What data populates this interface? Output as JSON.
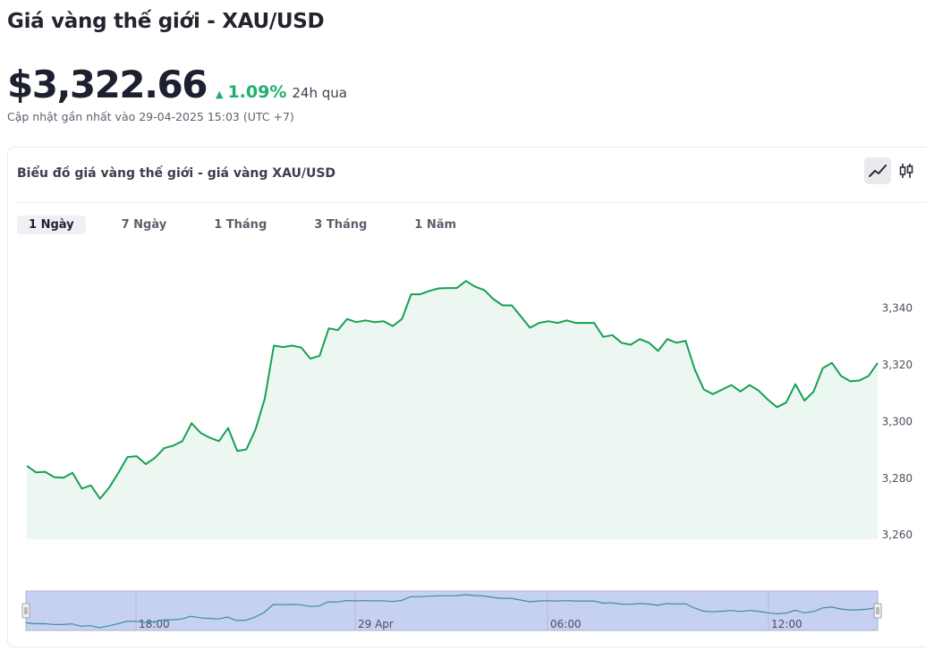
{
  "header": {
    "title": "Giá vàng thế giới - XAU/USD",
    "price": "$3,322.66",
    "change_pct": "1.09%",
    "change_period": "24h qua",
    "updated": "Cập nhật gần nhất vào 29-04-2025 15:03 (UTC +7)"
  },
  "card": {
    "title": "Biểu đồ giá vàng thế giới - giá vàng XAU/USD",
    "view_modes": [
      {
        "icon": "line-chart-icon",
        "active": true
      },
      {
        "icon": "candlestick-chart-icon",
        "active": false
      }
    ],
    "ranges": [
      {
        "label": "1 Ngày",
        "active": true
      },
      {
        "label": "7 Ngày",
        "active": false
      },
      {
        "label": "1 Tháng",
        "active": false
      },
      {
        "label": "3 Tháng",
        "active": false
      },
      {
        "label": "1 Năm",
        "active": false
      }
    ]
  },
  "colors": {
    "up": "#1db16b",
    "line": "#16a052",
    "area": "#edf7f1",
    "navigator_fill": "#c6d0f3",
    "navigator_line": "#3d8f97"
  },
  "chart_data": {
    "type": "area",
    "y_ticks": [
      "3,260",
      "3,280",
      "3,300",
      "3,320",
      "3,340"
    ],
    "ylim": [
      3258.5,
      3352
    ],
    "grid": false,
    "navigator_labels": [
      "18:00",
      "29 Apr",
      "06:00",
      "12:00"
    ],
    "series": [
      {
        "values": [
          3284.4,
          3282.1,
          3282.3,
          3280.4,
          3280.2,
          3281.9,
          3276.4,
          3277.5,
          3272.8,
          3276.7,
          3281.9,
          3287.5,
          3287.8,
          3285.0,
          3287.2,
          3290.6,
          3291.5,
          3293.1,
          3299.4,
          3296.0,
          3294.3,
          3293.1,
          3297.7,
          3289.6,
          3290.2,
          3297.2,
          3308.1,
          3326.8,
          3326.3,
          3326.8,
          3326.1,
          3322.2,
          3323.2,
          3332.9,
          3332.3,
          3336.2,
          3335.1,
          3335.7,
          3335.1,
          3335.4,
          3333.7,
          3336.2,
          3344.9,
          3344.9,
          3346.1,
          3347.0,
          3347.1,
          3347.1,
          3349.6,
          3347.6,
          3346.4,
          3343.2,
          3341.0,
          3341.0,
          3337.1,
          3333.1,
          3334.8,
          3335.4,
          3334.8,
          3335.7,
          3334.8,
          3334.8,
          3334.8,
          3329.9,
          3330.5,
          3327.8,
          3327.1,
          3329.1,
          3327.8,
          3324.9,
          3329.1,
          3327.8,
          3328.5,
          3318.4,
          3311.3,
          3309.7,
          3311.3,
          3312.9,
          3310.6,
          3312.9,
          3310.9,
          3307.7,
          3305.1,
          3306.7,
          3313.2,
          3307.4,
          3310.6,
          3318.8,
          3320.7,
          3316.1,
          3314.2,
          3314.5,
          3316.1,
          3320.7
        ]
      }
    ]
  }
}
